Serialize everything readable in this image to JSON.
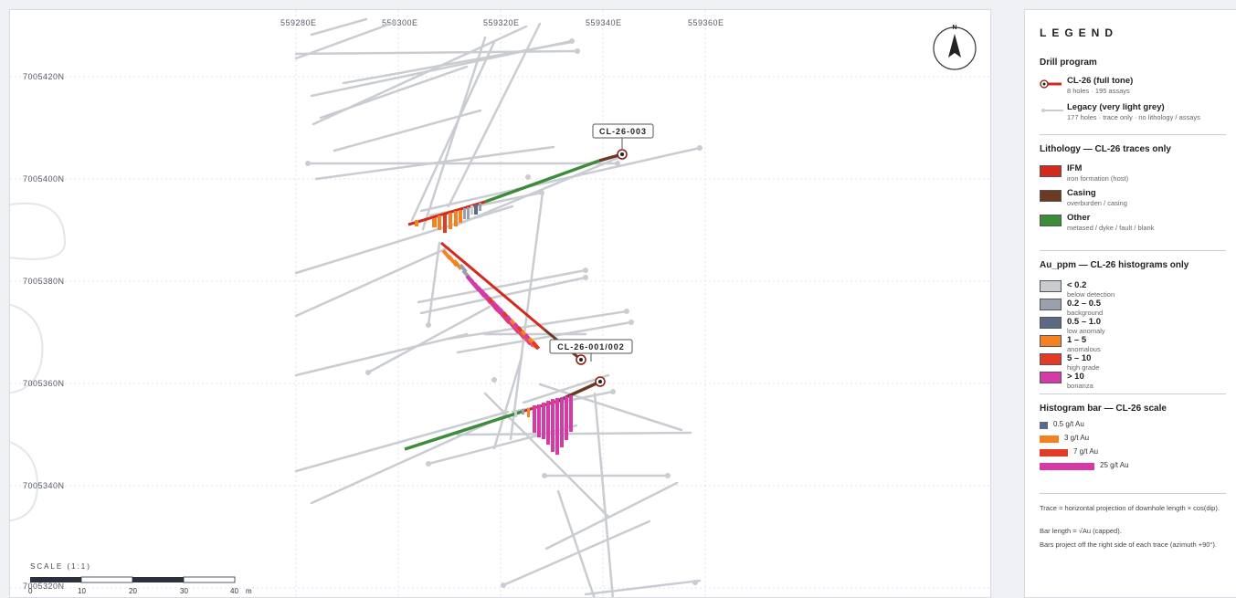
{
  "map": {
    "eastings": [
      "559280E",
      "559300E",
      "559320E",
      "559340E",
      "559360E"
    ],
    "northings": [
      "7005420N",
      "7005400N",
      "7005380N",
      "7005360N",
      "7005340N",
      "7005320N"
    ],
    "callouts": [
      "CL-26-003",
      "CL-26-001/002"
    ],
    "north_label": "N",
    "scale": {
      "title": "SCALE (1:1)",
      "ticks": [
        "0",
        "10",
        "20",
        "30",
        "40"
      ],
      "unit": "m"
    }
  },
  "legend": {
    "title": "LEGEND",
    "drill_program": {
      "heading": "Drill program",
      "items": [
        {
          "label": "CL-26 (full tone)",
          "sub": "8 holes · 195 assays"
        },
        {
          "label": "Legacy (very light grey)",
          "sub": "177 holes · trace only · no lithology / assays"
        }
      ]
    },
    "lithology": {
      "heading": "Lithology — CL-26 traces only",
      "items": [
        {
          "label": "IFM",
          "sub": "iron formation (host)",
          "color": "#d42a1e"
        },
        {
          "label": "Casing",
          "sub": "overburden / casing",
          "color": "#6b3a22"
        },
        {
          "label": "Other",
          "sub": "metased / dyke / fault / blank",
          "color": "#3d8c3a"
        }
      ]
    },
    "au": {
      "heading": "Au_ppm — CL-26 histograms only",
      "items": [
        {
          "label": "< 0.2",
          "sub": "below detection",
          "color": "#c8cbd0"
        },
        {
          "label": "0.2 – 0.5",
          "sub": "background",
          "color": "#9aa1ac"
        },
        {
          "label": "0.5 – 1.0",
          "sub": "low anomaly",
          "color": "#5d6a86"
        },
        {
          "label": "1 – 5",
          "sub": "anomalous",
          "color": "#f58220"
        },
        {
          "label": "5 – 10",
          "sub": "high grade",
          "color": "#e33a25"
        },
        {
          "label": "> 10",
          "sub": "bonanza",
          "color": "#d63aa6"
        }
      ]
    },
    "histogram": {
      "heading": "Histogram bar — CL-26 scale",
      "items": [
        {
          "label": "0.5 g/t Au",
          "color": "#5d6a86"
        },
        {
          "label": "3 g/t Au",
          "color": "#f58220"
        },
        {
          "label": "7 g/t Au",
          "color": "#e33a25"
        },
        {
          "label": "25 g/t Au",
          "color": "#d63aa6"
        }
      ]
    },
    "notes": [
      "Trace = horizontal projection of downhole length × cos(dip).",
      "Bar length = √Au (capped).",
      "Bars project off the right side of each trace (azimuth +90°)."
    ]
  }
}
